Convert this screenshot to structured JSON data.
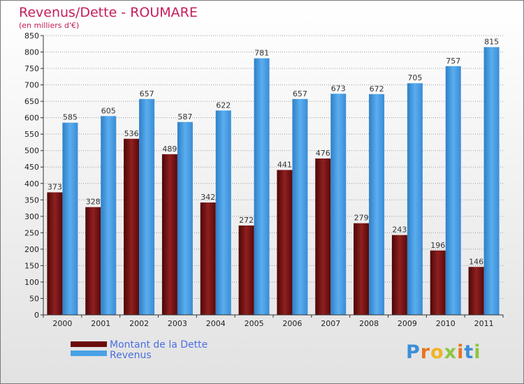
{
  "title": "Revenus/Dette - ROUMARE",
  "subtitle": "(en milliers d'€)",
  "logo": {
    "text": "Proxiti"
  },
  "colors": {
    "debt": "#7a1010",
    "revenue": "#4aa2e6",
    "title": "#c41e5c",
    "grid": "#999999"
  },
  "chart_data": {
    "type": "bar",
    "title": "Revenus/Dette - ROUMARE",
    "ylabel": "(en milliers d'€)",
    "xlabel": "",
    "ylim": [
      0,
      850
    ],
    "ytick_step": 50,
    "grid": true,
    "legend_position": "bottom-left",
    "categories": [
      "2000",
      "2001",
      "2002",
      "2003",
      "2004",
      "2005",
      "2006",
      "2007",
      "2008",
      "2009",
      "2010",
      "2011"
    ],
    "series": [
      {
        "name": "Montant de la Dette",
        "color": "#7a1010",
        "values": [
          373,
          328,
          536,
          489,
          342,
          272,
          441,
          476,
          279,
          243,
          196,
          146
        ]
      },
      {
        "name": "Revenus",
        "color": "#4aa2e6",
        "values": [
          585,
          605,
          657,
          587,
          622,
          781,
          657,
          673,
          672,
          705,
          757,
          815
        ]
      }
    ]
  }
}
